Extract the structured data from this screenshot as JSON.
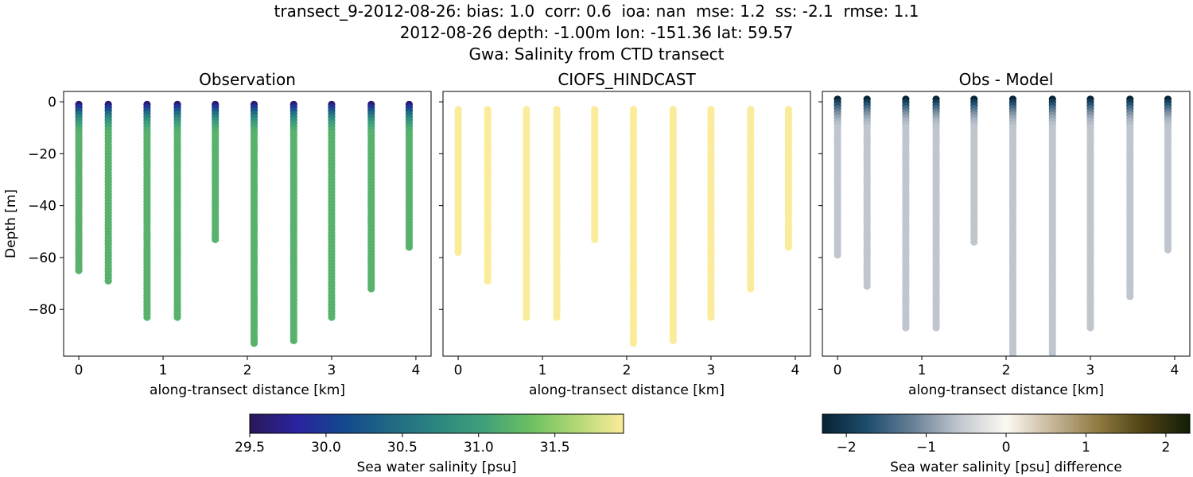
{
  "figure": {
    "title_lines": [
      "transect_9-2012-08-26: bias: 1.0  corr: 0.6  ioa: nan  mse: 1.2  ss: -2.1  rmse: 1.1",
      "2012-08-26 depth: -1.00m lon: -151.36 lat: 59.57",
      "Gwa: Salinity from CTD transect"
    ]
  },
  "chart_data": [
    {
      "type": "scatter",
      "title": "Observation",
      "xlabel": "along-transect distance [km]",
      "ylabel": "Depth [m]",
      "xlim": [
        -0.18,
        4.18
      ],
      "ylim": [
        -98,
        4
      ],
      "xticks": [
        0,
        1,
        2,
        3,
        4
      ],
      "yticks": [
        0,
        -20,
        -40,
        -60,
        -80
      ],
      "ytick_labels": [
        "0",
        "−20",
        "−40",
        "−60",
        "−80"
      ],
      "colorscale": "salinity",
      "x": [
        0,
        0.35,
        0.81,
        1.17,
        1.62,
        2.08,
        2.55,
        3.0,
        3.47,
        3.92
      ],
      "depth_top": [
        -1,
        -1,
        -1,
        -1,
        -1,
        -1,
        -1,
        -1,
        -1,
        -1
      ],
      "depth_bottom": [
        -65,
        -69,
        -83,
        -83,
        -53,
        -93,
        -92,
        -83,
        -72,
        -56
      ],
      "surface_value": 29.6,
      "deep_value": 31.2
    },
    {
      "type": "scatter",
      "title": "CIOFS_HINDCAST",
      "xlabel": "along-transect distance [km]",
      "ylabel": "",
      "xlim": [
        -0.18,
        4.18
      ],
      "ylim": [
        -98,
        4
      ],
      "xticks": [
        0,
        1,
        2,
        3,
        4
      ],
      "yticks": [
        0,
        -20,
        -40,
        -60,
        -80
      ],
      "colorscale": "salinity",
      "x": [
        0,
        0.35,
        0.81,
        1.17,
        1.62,
        2.08,
        2.55,
        3.0,
        3.47,
        3.92
      ],
      "depth_top": [
        -3,
        -3,
        -3,
        -3,
        -3,
        -3,
        -3,
        -3,
        -3,
        -3
      ],
      "depth_bottom": [
        -58,
        -69,
        -83,
        -83,
        -53,
        -93,
        -92,
        -83,
        -72,
        -56
      ],
      "surface_value": 31.95,
      "deep_value": 31.95
    },
    {
      "type": "scatter",
      "title": "Obs - Model",
      "xlabel": "along-transect distance [km]",
      "ylabel": "",
      "xlim": [
        -0.18,
        4.18
      ],
      "ylim": [
        -98,
        4
      ],
      "xticks": [
        0,
        1,
        2,
        3,
        4
      ],
      "yticks": [
        0,
        -20,
        -40,
        -60,
        -80
      ],
      "colorscale": "difference",
      "x": [
        0,
        0.35,
        0.81,
        1.17,
        1.62,
        2.08,
        2.55,
        3.0,
        3.47,
        3.92
      ],
      "depth_top": [
        1,
        1,
        1,
        1,
        1,
        1,
        1,
        1,
        1,
        1
      ],
      "depth_bottom": [
        -59,
        -71,
        -87,
        -87,
        -54,
        -98,
        -97,
        -87,
        -75,
        -57
      ],
      "surface_value": -2.3,
      "deep_value": -0.6
    }
  ],
  "colorbars": [
    {
      "label": "Sea water salinity [psu]",
      "range": [
        29.5,
        31.95
      ],
      "ticks": [
        29.5,
        30.0,
        30.5,
        31.0,
        31.5
      ],
      "tick_labels": [
        "29.5",
        "30.0",
        "30.5",
        "31.0",
        "31.5"
      ],
      "colors": [
        "#2a1858",
        "#2a23a0",
        "#13488e",
        "#206883",
        "#2b8680",
        "#3fa07a",
        "#6cc061",
        "#b2d875",
        "#fbec9c"
      ]
    },
    {
      "label": "Sea water salinity [psu] difference",
      "range": [
        -2.3,
        2.3
      ],
      "ticks": [
        -2,
        -1,
        0,
        1,
        2
      ],
      "tick_labels": [
        "−2",
        "−1",
        "0",
        "1",
        "2"
      ],
      "colors": [
        "#062335",
        "#1f4e6e",
        "#6a8297",
        "#c3c9d0",
        "#fcf8f3",
        "#c7b79a",
        "#8f7a40",
        "#4d4212",
        "#131d08"
      ]
    }
  ]
}
